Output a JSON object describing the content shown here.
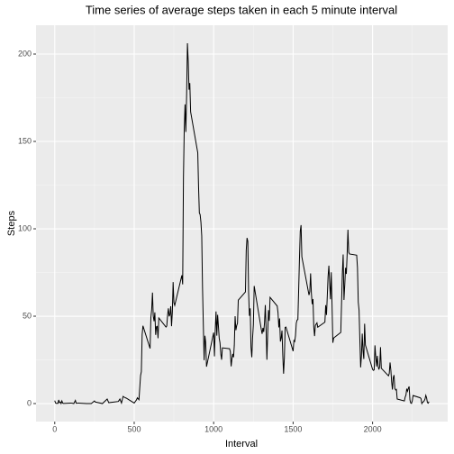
{
  "chart_data": {
    "type": "line",
    "title": "Time series of average steps taken in each 5 minute interval",
    "x_label": "Interval",
    "y_label": "Steps",
    "xlim": [
      -117.75,
      2472.75
    ],
    "xticks": [
      0,
      500,
      1000,
      1500,
      2000
    ],
    "ylim": [
      -10.3,
      216.5
    ],
    "yticks": [
      0,
      50,
      100,
      150,
      200
    ],
    "grid": true,
    "series": [
      {
        "name": "Steps",
        "color": "#000000",
        "x": [
          0,
          5,
          10,
          15,
          20,
          25,
          30,
          35,
          40,
          45,
          50,
          55,
          100,
          110,
          120,
          130,
          135,
          140,
          150,
          200,
          230,
          250,
          255,
          300,
          330,
          340,
          400,
          410,
          420,
          430,
          440,
          450,
          500,
          515,
          520,
          530,
          540,
          545,
          550,
          555,
          600,
          605,
          610,
          615,
          620,
          625,
          630,
          635,
          640,
          645,
          650,
          655,
          700,
          705,
          710,
          715,
          720,
          725,
          730,
          735,
          740,
          745,
          750,
          755,
          800,
          805,
          810,
          815,
          820,
          825,
          830,
          835,
          840,
          845,
          850,
          855,
          900,
          905,
          910,
          915,
          920,
          925,
          930,
          935,
          940,
          945,
          950,
          955,
          1000,
          1005,
          1010,
          1015,
          1020,
          1025,
          1030,
          1035,
          1040,
          1045,
          1050,
          1055,
          1100,
          1105,
          1110,
          1115,
          1120,
          1125,
          1130,
          1135,
          1140,
          1145,
          1150,
          1155,
          1200,
          1205,
          1210,
          1215,
          1220,
          1225,
          1230,
          1235,
          1240,
          1245,
          1250,
          1255,
          1300,
          1305,
          1310,
          1315,
          1320,
          1325,
          1330,
          1335,
          1340,
          1345,
          1350,
          1355,
          1400,
          1405,
          1410,
          1415,
          1420,
          1425,
          1430,
          1435,
          1440,
          1445,
          1450,
          1455,
          1500,
          1505,
          1510,
          1515,
          1520,
          1525,
          1530,
          1535,
          1540,
          1545,
          1550,
          1555,
          1600,
          1605,
          1610,
          1615,
          1620,
          1625,
          1630,
          1635,
          1640,
          1645,
          1650,
          1655,
          1700,
          1705,
          1710,
          1715,
          1720,
          1725,
          1730,
          1735,
          1740,
          1745,
          1750,
          1755,
          1800,
          1805,
          1810,
          1815,
          1820,
          1825,
          1830,
          1835,
          1840,
          1845,
          1850,
          1855,
          1900,
          1905,
          1910,
          1915,
          1920,
          1925,
          1930,
          1935,
          1940,
          1945,
          1950,
          1955,
          2000,
          2005,
          2010,
          2015,
          2020,
          2025,
          2030,
          2035,
          2040,
          2045,
          2050,
          2055,
          2100,
          2105,
          2110,
          2115,
          2120,
          2125,
          2130,
          2135,
          2140,
          2145,
          2150,
          2155,
          2200,
          2205,
          2210,
          2215,
          2220,
          2225,
          2230,
          2235,
          2240,
          2245,
          2250,
          2255,
          2300,
          2305,
          2310,
          2315,
          2320,
          2325,
          2330,
          2335,
          2340,
          2345,
          2350,
          2355
        ],
        "values": [
          1.7,
          0.3,
          0.1,
          0.2,
          0.1,
          2.1,
          0.5,
          0.9,
          0,
          1.5,
          0.3,
          0.1,
          0.3,
          0.2,
          0,
          1.8,
          0.2,
          0.2,
          0.3,
          0,
          0,
          1.5,
          0.9,
          0,
          2.6,
          0.5,
          1.2,
          2.6,
          0.3,
          4.1,
          3.5,
          3.1,
          0.3,
          2.2,
          3.3,
          2.2,
          16.0,
          18.3,
          39.5,
          44.5,
          31.5,
          49.3,
          53.8,
          63.5,
          50,
          47.1,
          52.2,
          39.3,
          44.0,
          44.2,
          37.4,
          49.0,
          43.8,
          44.4,
          50.5,
          54.5,
          49.9,
          51.0,
          55.7,
          44.3,
          52.3,
          69.5,
          57.8,
          56.2,
          73.4,
          68.2,
          129.4,
          157.5,
          171.2,
          155.4,
          177.3,
          206.2,
          195.9,
          179.6,
          183.4,
          167.0,
          143.5,
          124.0,
          109.1,
          108.1,
          103.7,
          95.9,
          66.2,
          45.2,
          24.8,
          38.8,
          35.0,
          21.1,
          40.6,
          27.0,
          42.4,
          52.7,
          38.9,
          50.8,
          44.3,
          37.4,
          34.7,
          28.3,
          25.1,
          31.9,
          31.4,
          29.7,
          21.3,
          25.5,
          28.4,
          26.5,
          33.4,
          50.0,
          42.0,
          44.6,
          46.0,
          59.2,
          63.9,
          87.7,
          94.8,
          92.8,
          63.4,
          50.2,
          54.5,
          32.4,
          26.5,
          37.7,
          45.1,
          67.3,
          42.3,
          39.9,
          43.3,
          41.0,
          46.2,
          56.4,
          42.8,
          25.1,
          40.0,
          53.5,
          47.3,
          60.8,
          55.8,
          52.0,
          43.6,
          48.7,
          35.5,
          37.5,
          41.8,
          27.5,
          17.1,
          26.1,
          43.6,
          43.8,
          30.0,
          36.1,
          35.5,
          38.8,
          46.0,
          47.8,
          48.1,
          65.3,
          82.9,
          98.7,
          102.1,
          84.0,
          62.1,
          64.1,
          74.5,
          63.2,
          56.9,
          59.8,
          43.9,
          38.6,
          44.7,
          45.5,
          46.2,
          43.7,
          46.6,
          56.3,
          50.7,
          61.2,
          72.7,
          78.9,
          68.9,
          59.7,
          75.1,
          56.5,
          34.8,
          37.5,
          40.7,
          58.0,
          74.7,
          85.3,
          59.3,
          67.8,
          77.7,
          74.2,
          85.3,
          99.5,
          86.6,
          85.6,
          84.9,
          77.8,
          58.0,
          53.4,
          36.3,
          20.7,
          27.4,
          40.0,
          30.2,
          25.5,
          45.7,
          33.5,
          19.6,
          19.0,
          19.3,
          33.3,
          26.8,
          21.2,
          27.3,
          21.3,
          19.5,
          21.3,
          32.3,
          20.2,
          15.9,
          17.2,
          23.5,
          19.2,
          12.5,
          8.0,
          14.7,
          16.3,
          8.7,
          7.8,
          8.1,
          2.6,
          1.5,
          3.7,
          4.8,
          8.5,
          7.1,
          8.7,
          9.8,
          2.2,
          0.3,
          0.1,
          1.6,
          4.6,
          3.3,
          2.8,
          0,
          0.8,
          1.0,
          1.6,
          2.6,
          4.7,
          3.3,
          0.6,
          0.2,
          1.1
        ]
      }
    ]
  }
}
